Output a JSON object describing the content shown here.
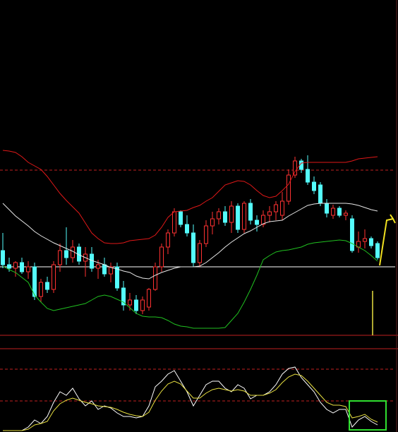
{
  "chart_data": [
    {
      "type": "candlestick",
      "ylim": [
        0,
        475
      ],
      "up_color": "#ff3232",
      "down_color": "#54fcfc",
      "open": [
        120,
        100,
        95,
        103,
        90,
        97,
        55,
        75,
        65,
        100,
        120,
        110,
        125,
        105,
        115,
        95,
        100,
        87,
        97,
        67,
        43,
        50,
        35,
        40,
        65,
        97,
        125,
        145,
        175,
        157,
        145,
        103,
        130,
        155,
        165,
        175,
        160,
        183,
        150,
        187,
        163,
        157,
        170,
        175,
        170,
        190,
        227,
        247,
        235,
        217,
        213,
        187,
        170,
        180,
        170,
        165,
        125,
        133,
        137,
        130
      ],
      "high": [
        145,
        110,
        105,
        110,
        105,
        103,
        80,
        83,
        105,
        130,
        153,
        135,
        130,
        125,
        125,
        107,
        110,
        103,
        103,
        77,
        60,
        57,
        55,
        67,
        103,
        130,
        150,
        180,
        177,
        170,
        157,
        135,
        163,
        175,
        180,
        183,
        190,
        187,
        190,
        193,
        170,
        177,
        183,
        190,
        203,
        235,
        253,
        250,
        255,
        225,
        217,
        193,
        185,
        183,
        177,
        170,
        147,
        150,
        140,
        133
      ],
      "low": [
        95,
        90,
        83,
        87,
        80,
        50,
        47,
        60,
        60,
        90,
        100,
        103,
        100,
        83,
        90,
        80,
        83,
        75,
        63,
        35,
        35,
        30,
        30,
        35,
        63,
        90,
        115,
        140,
        153,
        140,
        97,
        97,
        125,
        143,
        157,
        155,
        145,
        145,
        145,
        157,
        147,
        153,
        160,
        163,
        163,
        185,
        223,
        230,
        213,
        200,
        183,
        167,
        165,
        167,
        163,
        117,
        117,
        123,
        123,
        107
      ],
      "close": [
        100,
        95,
        103,
        90,
        97,
        55,
        75,
        65,
        100,
        120,
        110,
        125,
        105,
        115,
        95,
        100,
        87,
        97,
        67,
        43,
        50,
        35,
        50,
        65,
        97,
        125,
        145,
        175,
        157,
        145,
        103,
        130,
        155,
        165,
        175,
        160,
        183,
        150,
        187,
        163,
        157,
        170,
        175,
        185,
        190,
        227,
        247,
        235,
        217,
        205,
        187,
        173,
        180,
        170,
        173,
        120,
        133,
        137,
        127,
        110
      ],
      "lines": [
        {
          "color": "#e01818",
          "values": [
            262,
            261,
            259,
            253,
            245,
            240,
            235,
            225,
            213,
            201,
            191,
            182,
            173,
            159,
            145,
            137,
            131,
            130,
            130,
            131,
            134,
            135,
            136,
            137,
            142,
            153,
            167,
            175,
            176,
            177,
            181,
            184,
            190,
            195,
            204,
            213,
            216,
            219,
            218,
            213,
            205,
            198,
            195,
            197,
            205,
            214,
            232,
            244,
            245,
            245,
            245,
            245,
            245,
            245,
            245,
            247,
            250,
            251,
            252,
            253
          ]
        },
        {
          "color": "#e8e8e8",
          "values": [
            187,
            178,
            169,
            162,
            155,
            147,
            141,
            136,
            131,
            127,
            123,
            119,
            114,
            110,
            106,
            103,
            100,
            96,
            94,
            91,
            89,
            84,
            81,
            80,
            85,
            89,
            92,
            95,
            97,
            97,
            97,
            98,
            103,
            110,
            117,
            125,
            132,
            138,
            144,
            148,
            153,
            158,
            161,
            162,
            163,
            169,
            174,
            179,
            184,
            186,
            187,
            187,
            187,
            187,
            187,
            186,
            184,
            181,
            178,
            176
          ]
        },
        {
          "color": "#20c020",
          "values": [
            98,
            93,
            89,
            82,
            75,
            57,
            47,
            38,
            35,
            37,
            39,
            41,
            43,
            45,
            50,
            55,
            57,
            55,
            51,
            47,
            39,
            31,
            27,
            26,
            26,
            25,
            21,
            16,
            13,
            12,
            10,
            10,
            10,
            10,
            10,
            11,
            21,
            31,
            47,
            65,
            85,
            107,
            113,
            118,
            120,
            121,
            123,
            125,
            129,
            131,
            132,
            133,
            134,
            135,
            134,
            130,
            125,
            120,
            113,
            105
          ]
        }
      ],
      "reference_lines": [
        {
          "value": 234,
          "color": "#c02020",
          "style": "dashed"
        },
        {
          "value": 97,
          "color": "#ffffff",
          "style": "solid"
        }
      ]
    },
    {
      "type": "line",
      "ylim": [
        0,
        118
      ],
      "series": [
        {
          "color": "#ffffff",
          "values": [
            2,
            2,
            2,
            2,
            7,
            17,
            12,
            22,
            42,
            57,
            52,
            62,
            47,
            37,
            44,
            32,
            37,
            34,
            27,
            22,
            22,
            20,
            22,
            37,
            64,
            72,
            82,
            87,
            72,
            57,
            37,
            52,
            67,
            72,
            72,
            62,
            57,
            67,
            62,
            47,
            52,
            52,
            57,
            67,
            82,
            90,
            92,
            77,
            67,
            57,
            42,
            32,
            27,
            32,
            32,
            7,
            17,
            22,
            15,
            10
          ]
        },
        {
          "color": "#e8e040",
          "values": [
            2,
            2,
            2,
            2,
            4,
            10,
            12,
            15,
            30,
            40,
            45,
            48,
            45,
            42,
            40,
            37,
            36,
            35,
            32,
            28,
            25,
            23,
            22,
            28,
            45,
            58,
            68,
            72,
            68,
            58,
            48,
            48,
            55,
            60,
            62,
            60,
            58,
            60,
            58,
            52,
            52,
            52,
            55,
            60,
            70,
            78,
            82,
            80,
            72,
            62,
            52,
            42,
            38,
            38,
            36,
            20,
            22,
            25,
            18,
            14
          ]
        }
      ],
      "reference_lines": [
        {
          "value": 89,
          "color": "#c02020",
          "style": "dashed"
        },
        {
          "value": 44,
          "color": "#c02020",
          "style": "dashed"
        }
      ]
    }
  ]
}
